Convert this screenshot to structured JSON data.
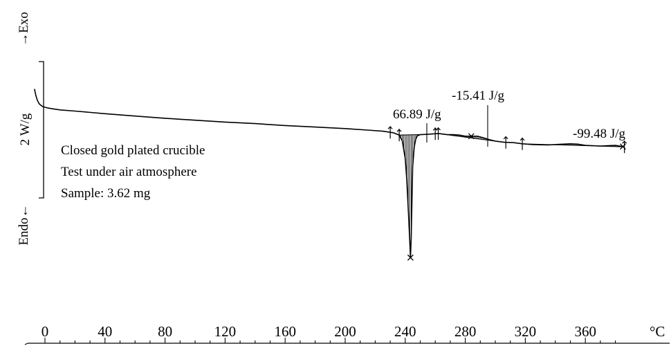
{
  "chart_data": {
    "type": "line",
    "title": "",
    "xlabel": "",
    "x_unit": "°C",
    "xlim": [
      -4,
      388
    ],
    "x_ticks": [
      0,
      40,
      80,
      120,
      160,
      200,
      240,
      280,
      320,
      360
    ],
    "x_minor_step": 10,
    "ylabel_exo": "→Exo",
    "ylabel_endo": "Endo←",
    "scale_bar_label": "2 W/g",
    "grid": false,
    "legend": "none",
    "series": [
      {
        "x": [
          -7,
          -6,
          -5,
          -4,
          -3,
          -2,
          -1,
          0,
          2,
          5,
          10,
          20,
          40,
          60,
          80,
          100,
          120,
          140,
          160,
          180,
          200,
          215,
          225,
          232,
          236,
          238,
          240,
          241,
          242,
          243,
          243.5,
          244,
          244.5,
          245,
          246,
          247,
          248,
          250,
          255,
          262,
          268,
          272,
          276,
          280,
          284,
          288,
          292,
          296,
          300,
          306,
          312,
          318,
          325,
          335,
          345,
          350,
          355,
          360,
          365,
          370,
          375,
          380,
          386
        ],
        "y": [
          0.52,
          0.7,
          0.82,
          0.9,
          0.94,
          0.97,
          0.99,
          1.0,
          1.02,
          1.04,
          1.07,
          1.1,
          1.17,
          1.23,
          1.29,
          1.34,
          1.39,
          1.43,
          1.48,
          1.52,
          1.56,
          1.6,
          1.63,
          1.67,
          1.73,
          1.88,
          2.35,
          2.9,
          3.65,
          4.5,
          4.95,
          4.4,
          3.4,
          2.55,
          2.05,
          1.84,
          1.75,
          1.72,
          1.71,
          1.69,
          1.72,
          1.72,
          1.73,
          1.76,
          1.76,
          1.76,
          1.8,
          1.85,
          1.89,
          1.92,
          1.93,
          1.96,
          1.98,
          1.99,
          1.97,
          1.96,
          1.97,
          2.0,
          2.01,
          2.02,
          2.01,
          2.0,
          2.04
        ]
      }
    ],
    "annotations": [
      {
        "text": "66.89 J/g",
        "x": 244,
        "y": 1.24
      },
      {
        "text": "-15.41 J/g",
        "x": 284,
        "y": 1.05
      },
      {
        "text": "-99.48 J/g",
        "x": 368,
        "y": 1.5
      }
    ],
    "info_lines": [
      "Closed gold plated crucible",
      "Test under air atmosphere",
      "Sample: 3.62 mg"
    ]
  }
}
